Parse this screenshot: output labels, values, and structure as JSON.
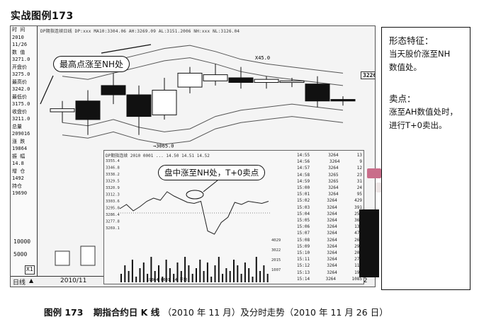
{
  "title": "实战图例173",
  "kline_panel": {
    "top_stats": "DP期指连续日线 DP:xxx  MA10:3304.06  AH:3269.09  AL:3151.2006  NH:xxx  NL:3126.04",
    "left_labels": [
      "时 间",
      "2010",
      "11/26",
      "数 值",
      "3271.0",
      "开盘价",
      "3275.0",
      "最高价",
      "3242.0",
      "最低价",
      "3175.0",
      "收盘价",
      "3211.0",
      "总量",
      "209016",
      "涨 跌",
      "19864",
      "振 幅",
      "14.8",
      "增 仓",
      "1492",
      "持仓",
      "19690"
    ],
    "volume_scale": [
      "10000",
      "5000"
    ],
    "x1_label": "X1",
    "level_label_1": "3065.0",
    "level_label_2": "X45.0",
    "price_label": "3226.95",
    "callout": "最高点涨至NH处",
    "status_left": "日线",
    "status_date": "2010/11",
    "status_right": "12"
  },
  "intraday_inset": {
    "header": "DP期指连续 2010 0001 ... 14.50  14.51  14.52",
    "y_labels": [
      "3355.4",
      "3346.8",
      "3338.2",
      "3329.5",
      "3320.9",
      "3312.3",
      "3303.6",
      "3295.0",
      "3286.4",
      "3277.8",
      "3269.1"
    ],
    "vol_labels": [
      "4029",
      "3022",
      "2015",
      "1007"
    ],
    "bottom_text": "19864 0001 14 平均",
    "callout": "盘中涨至NH处，T+0卖点",
    "ticks": [
      [
        "14:55",
        "3264",
        "13"
      ],
      [
        "14:56",
        "3264",
        "9"
      ],
      [
        "14:57",
        "3264",
        "12"
      ],
      [
        "14:58",
        "3265",
        "23"
      ],
      [
        "14:59",
        "3265",
        "31"
      ],
      [
        "15:00",
        "3264",
        "24"
      ],
      [
        "15:01",
        "3264",
        "95"
      ],
      [
        "15:02",
        "3264",
        "429"
      ],
      [
        "15:03",
        "3264",
        "391"
      ],
      [
        "15:04",
        "3264",
        "258"
      ],
      [
        "15:05",
        "3264",
        "368"
      ],
      [
        "15:06",
        "3264",
        "135"
      ],
      [
        "15:07",
        "3264",
        "477"
      ],
      [
        "15:08",
        "3264",
        "266"
      ],
      [
        "15:09",
        "3264",
        "299"
      ],
      [
        "15:10",
        "3264",
        "205"
      ],
      [
        "15:11",
        "3264",
        "270"
      ],
      [
        "15:12",
        "3264",
        "114"
      ],
      [
        "15:13",
        "3264",
        "196"
      ],
      [
        "15:14",
        "3264",
        "1085"
      ]
    ]
  },
  "sidebar": {
    "heading1": "形态特征：",
    "text1": [
      "当天股价涨至NH",
      "数值处。"
    ],
    "heading2": "卖点：",
    "text2": [
      "涨至AH数值处时，",
      "进行T+0卖出。"
    ]
  },
  "caption": {
    "label": "图例 173",
    "text": "期指合约日 K 线",
    "paren": "（2010 年 11 月）及分时走势（2010 年 11 月 26 日）"
  },
  "chart_data": [
    {
      "type": "candlestick",
      "title": "",
      "candles": [
        {
          "open": 3175,
          "close": 3185,
          "high": 3210,
          "low": 3140,
          "color": "white"
        },
        {
          "open": 3210,
          "close": 3150,
          "high": 3245,
          "low": 3100,
          "color": "black"
        },
        {
          "open": 3230,
          "close": 3260,
          "high": 3300,
          "low": 3200,
          "color": "black"
        },
        {
          "open": 3230,
          "close": 3160,
          "high": 3260,
          "low": 3100,
          "color": "black"
        },
        {
          "open": 3165,
          "close": 3245,
          "high": 3285,
          "low": 3150,
          "color": "white"
        },
        {
          "open": 3255,
          "close": 3300,
          "high": 3320,
          "low": 3235,
          "color": "white"
        },
        {
          "open": 3295,
          "close": 3275,
          "high": 3330,
          "low": 3260,
          "color": "white"
        },
        {
          "open": 3285,
          "close": 3270,
          "high": 3320,
          "low": 3250,
          "color": "black"
        },
        {
          "open": 3280,
          "close": 3270,
          "high": 3290,
          "low": 3250,
          "color": "white"
        },
        {
          "open": 3270,
          "close": 3275,
          "high": 3285,
          "low": 3255,
          "color": "white"
        },
        {
          "open": 3265,
          "close": 3210,
          "high": 3290,
          "low": 3190,
          "color": "black"
        },
        {
          "open": 3215,
          "close": 3210,
          "high": 3225,
          "low": 3195,
          "color": "black"
        }
      ],
      "nh_line": [
        3330,
        3320,
        3340,
        3360,
        3380,
        3390,
        3370,
        3345,
        3330,
        3320,
        3310,
        3300
      ],
      "nl_line": [
        3100,
        3090,
        3110,
        3085,
        3070,
        3080,
        3120,
        3140,
        3150,
        3160,
        3150,
        3140
      ]
    },
    {
      "type": "line",
      "title": "",
      "series": [
        {
          "values": [
            3296,
            3300,
            3294,
            3298,
            3303,
            3306,
            3304,
            3312,
            3308,
            3305,
            3302,
            3301,
            3303,
            3275,
            3272,
            3283,
            3288,
            3302,
            3300,
            3303,
            3302,
            3301,
            3303
          ]
        }
      ],
      "volumes": [
        3,
        6,
        4,
        8,
        2,
        5,
        7,
        3,
        9,
        4,
        6,
        2,
        8,
        5,
        3,
        7,
        4,
        9,
        6,
        3,
        5,
        8,
        4,
        7,
        2,
        6,
        9,
        3,
        5,
        4,
        8,
        6,
        3,
        7,
        5,
        2,
        9,
        4,
        6,
        3
      ]
    }
  ]
}
